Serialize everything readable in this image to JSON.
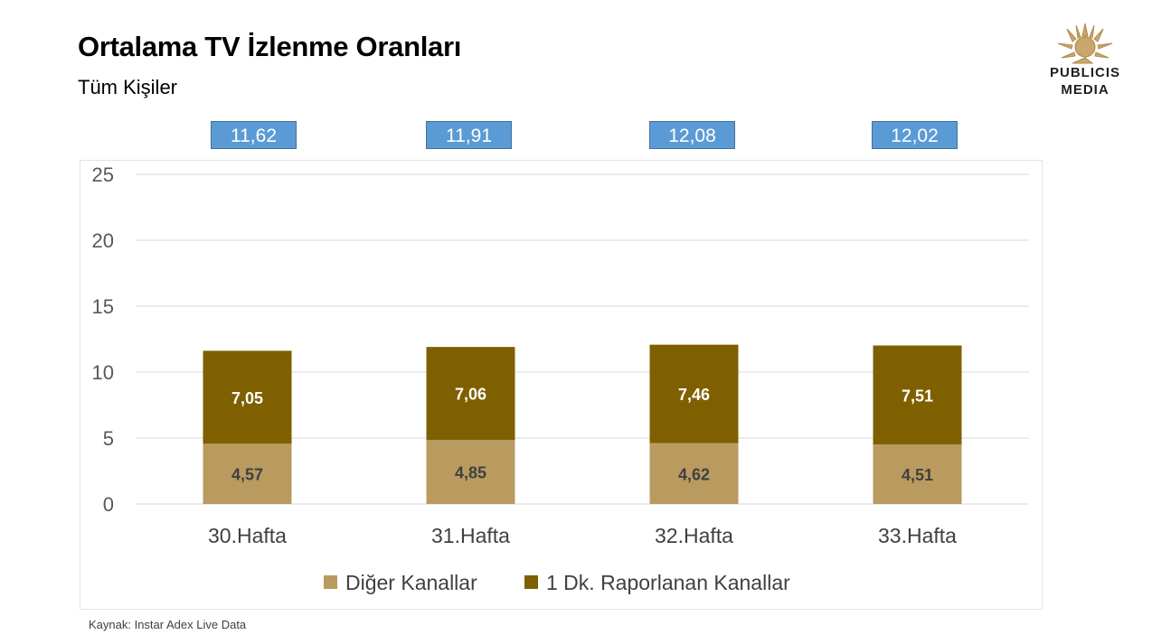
{
  "header": {
    "title": "Ortalama TV İzlenme Oranları",
    "subtitle": "Tüm Kişiler"
  },
  "logo": {
    "line1": "PUBLICIS",
    "line2": "MEDIA",
    "icon": "lion-head-icon"
  },
  "source": "Kaynak: Instar  Adex Live Data",
  "colors": {
    "other": "#b99b60",
    "reported": "#7f6000",
    "total_box": "#5b9bd5",
    "grid": "#d9d9d9"
  },
  "chart_data": {
    "type": "bar",
    "stacked": true,
    "categories": [
      "30.Hafta",
      "31.Hafta",
      "32.Hafta",
      "33.Hafta"
    ],
    "series": [
      {
        "name": "Diğer Kanallar",
        "values": [
          4.57,
          4.85,
          4.62,
          4.51
        ],
        "labels": [
          "4,57",
          "4,85",
          "4,62",
          "4,51"
        ]
      },
      {
        "name": "1 Dk. Raporlanan Kanallar",
        "values": [
          7.05,
          7.06,
          7.46,
          7.51
        ],
        "labels": [
          "7,05",
          "7,06",
          "7,46",
          "7,51"
        ]
      }
    ],
    "totals": [
      "11,62",
      "11,91",
      "12,08",
      "12,02"
    ],
    "ylim": [
      0,
      25
    ],
    "yticks": [
      "0",
      "5",
      "10",
      "15",
      "20",
      "25"
    ],
    "grid": true,
    "legend_position": "bottom"
  }
}
